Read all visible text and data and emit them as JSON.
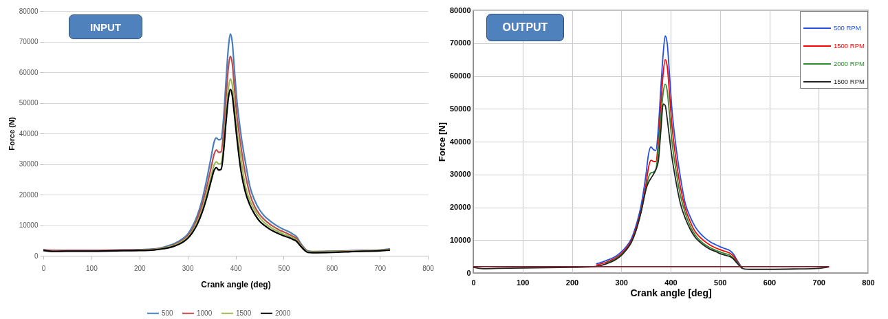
{
  "chart_data": [
    {
      "type": "line",
      "title": "INPUT",
      "xlabel": "Crank angle (deg)",
      "ylabel": "Force (N)",
      "x": [
        0,
        20,
        50,
        100,
        150,
        200,
        230,
        250,
        270,
        290,
        300,
        310,
        320,
        330,
        340,
        350,
        355,
        360,
        365,
        370,
        375,
        380,
        385,
        389,
        393,
        397,
        402,
        410,
        420,
        430,
        440,
        450,
        460,
        470,
        480,
        490,
        500,
        510,
        520,
        527,
        535,
        545,
        550,
        560,
        600,
        650,
        700,
        720
      ],
      "series": [
        {
          "name": "500",
          "color": "#4a7ebb",
          "values": [
            2000,
            1800,
            1800,
            1800,
            1900,
            2000,
            2200,
            2800,
            3800,
            5600,
            7000,
            9500,
            13000,
            18000,
            25000,
            33000,
            37000,
            38500,
            37900,
            38200,
            45000,
            57000,
            68000,
            72500,
            70000,
            62000,
            52000,
            41000,
            31000,
            22500,
            18000,
            15000,
            13000,
            11600,
            10400,
            9400,
            8600,
            7900,
            7000,
            6200,
            4200,
            2200,
            1600,
            1400,
            1500,
            1700,
            1900,
            2200
          ]
        },
        {
          "name": "1000",
          "color": "#be4b48",
          "values": [
            1900,
            1700,
            1700,
            1700,
            1800,
            1900,
            2100,
            2600,
            3500,
            5100,
            6400,
            8600,
            12000,
            16500,
            22500,
            29500,
            33000,
            34600,
            33800,
            34000,
            40500,
            51500,
            61500,
            65200,
            63000,
            56000,
            47000,
            37000,
            27000,
            20000,
            16000,
            13500,
            11800,
            10500,
            9400,
            8500,
            7800,
            7100,
            6300,
            5600,
            3800,
            2000,
            1400,
            1300,
            1400,
            1600,
            1800,
            2000
          ]
        },
        {
          "name": "1500",
          "color": "#98b954",
          "values": [
            null,
            null,
            null,
            null,
            null,
            1800,
            2000,
            2500,
            3300,
            4800,
            6000,
            8000,
            11000,
            15000,
            20500,
            26500,
            29500,
            30700,
            30000,
            30200,
            36000,
            46000,
            54500,
            57800,
            56000,
            50000,
            42000,
            33000,
            23000,
            18000,
            14800,
            12500,
            10800,
            9600,
            8600,
            7800,
            7100,
            6500,
            5800,
            5100,
            3500,
            1800,
            1300,
            1200,
            1300,
            1500,
            1700,
            1900
          ]
        },
        {
          "name": "2000",
          "color": "#000000",
          "values": [
            1700,
            1400,
            1500,
            1500,
            1600,
            1700,
            1900,
            2300,
            3000,
            4400,
            5600,
            7500,
            10200,
            14000,
            19000,
            25000,
            27800,
            28800,
            28000,
            28300,
            34000,
            43500,
            51500,
            54400,
            52500,
            47000,
            39500,
            29000,
            21000,
            16500,
            13500,
            11300,
            9900,
            8800,
            7900,
            7200,
            6500,
            6000,
            5300,
            4700,
            3200,
            1600,
            1100,
            1000,
            1100,
            1400,
            1600,
            1800
          ]
        }
      ],
      "xlim": [
        0,
        800
      ],
      "xticks": [
        0,
        100,
        200,
        300,
        400,
        500,
        600,
        700,
        800
      ],
      "ylim": [
        0,
        80000
      ],
      "yticks": [
        0,
        10000,
        20000,
        30000,
        40000,
        50000,
        60000,
        70000,
        80000
      ],
      "grid": "y",
      "legend": "bottom"
    },
    {
      "type": "line",
      "title": "OUTPUT",
      "xlabel": "Crank angle [deg]",
      "ylabel": "Force [N]",
      "x": [
        0,
        20,
        50,
        100,
        150,
        200,
        230,
        250,
        270,
        290,
        300,
        310,
        320,
        330,
        340,
        350,
        355,
        360,
        365,
        370,
        375,
        380,
        385,
        389,
        393,
        397,
        402,
        410,
        420,
        430,
        440,
        450,
        460,
        470,
        480,
        490,
        500,
        510,
        520,
        527,
        535,
        545,
        550,
        560,
        600,
        650,
        700,
        720
      ],
      "series": [
        {
          "name": "500 RPM",
          "color": "#2350e0",
          "values": [
            null,
            null,
            null,
            null,
            null,
            null,
            null,
            2800,
            3800,
            5200,
            6400,
            8000,
            10300,
            14500,
            20500,
            30000,
            36000,
            38400,
            37600,
            37300,
            44000,
            56000,
            67000,
            72200,
            70000,
            62000,
            51000,
            39500,
            29000,
            21000,
            17000,
            14000,
            12000,
            10600,
            9500,
            8700,
            8000,
            7400,
            6800,
            5800,
            3800,
            1500,
            null,
            null,
            null,
            null,
            null,
            null
          ]
        },
        {
          "name": "1500 RPM",
          "color": "#ff0000",
          "values": [
            null,
            null,
            null,
            null,
            null,
            null,
            null,
            2400,
            3300,
            4700,
            5900,
            7500,
            9700,
            13600,
            19000,
            27000,
            32000,
            34300,
            34000,
            33900,
            40000,
            51000,
            61000,
            65000,
            63000,
            56000,
            46000,
            35500,
            26000,
            19500,
            15500,
            12500,
            10800,
            9500,
            8500,
            7700,
            7100,
            6600,
            6000,
            5200,
            3400,
            1400,
            null,
            null,
            null,
            null,
            null,
            null
          ]
        },
        {
          "name": "2000 RPM",
          "color": "#2e8b2e",
          "values": [
            null,
            null,
            null,
            null,
            null,
            null,
            null,
            null,
            3000,
            4400,
            5500,
            7100,
            9300,
            13000,
            18500,
            25500,
            29000,
            30500,
            30700,
            31500,
            38000,
            47000,
            55000,
            57500,
            55500,
            49500,
            41000,
            32000,
            23500,
            18000,
            14200,
            11500,
            9800,
            8600,
            7700,
            7000,
            6400,
            5900,
            5400,
            4600,
            3100,
            1400,
            null,
            null,
            null,
            null,
            null,
            null
          ]
        },
        {
          "name": "1500 RPM",
          "color": "#222222",
          "values": [
            1700,
            1300,
            1400,
            1500,
            1600,
            1700,
            1800,
            2000,
            2800,
            4200,
            5300,
            7000,
            9200,
            13000,
            18500,
            25500,
            27500,
            28800,
            30000,
            31500,
            34000,
            43000,
            51500,
            51000,
            47000,
            42000,
            36000,
            28500,
            21000,
            16500,
            13200,
            10800,
            9300,
            8100,
            7200,
            6600,
            5900,
            5400,
            5000,
            4300,
            2900,
            1400,
            1200,
            1100,
            1100,
            1200,
            1400,
            1800
          ]
        },
        {
          "color": "#8b1c2c",
          "x": [
            0,
            720
          ],
          "values": [
            1900,
            1900
          ]
        }
      ],
      "xlim": [
        0,
        800
      ],
      "xticks": [
        0,
        100,
        200,
        300,
        400,
        500,
        600,
        700,
        800
      ],
      "ylim": [
        0,
        80000
      ],
      "yticks": [
        0,
        10000,
        20000,
        30000,
        40000,
        50000,
        60000,
        70000,
        80000
      ],
      "grid": true,
      "legend": "top right"
    }
  ]
}
